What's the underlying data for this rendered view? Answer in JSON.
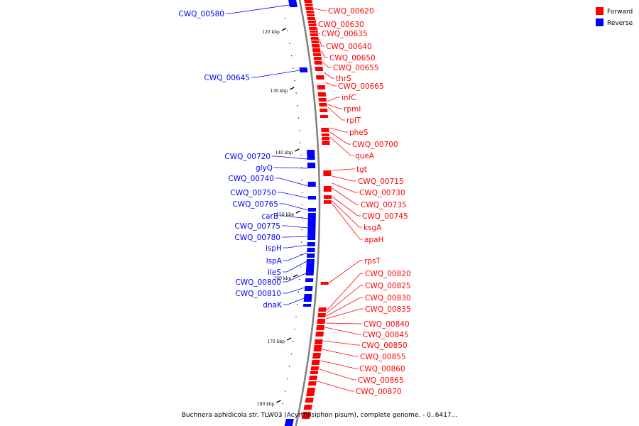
{
  "caption": "Buchnera aphidicola str. TLW03 (Acyrthosiphon pisum), complete genome. - 0..6417...",
  "legend": [
    {
      "label": "Forward",
      "color": "#ff0000"
    },
    {
      "label": "Reverse",
      "color": "#0000ff"
    }
  ],
  "colors": {
    "forward": "#ff0000",
    "reverse": "#0000ff",
    "backbone": "#808080",
    "ticks": "#000000"
  },
  "kbp_labels": [
    "120 kbp",
    "130 kbp",
    "140 kbp",
    "150 kbp",
    "160 kbp",
    "170 kbp",
    "180 kbp"
  ],
  "forward_labels": [
    "CWQ_00620",
    "CWQ_00630",
    "CWQ_00635",
    "CWQ_00640",
    "CWQ_00650",
    "CWQ_00655",
    "thrS",
    "CWQ_00665",
    "infC",
    "rpmI",
    "rplT",
    "pheS",
    "CWQ_00700",
    "queA",
    "tgt",
    "CWQ_00715",
    "CWQ_00730",
    "CWQ_00735",
    "CWQ_00745",
    "ksgA",
    "apaH",
    "rpsT",
    "CWQ_00820",
    "CWQ_00825",
    "CWQ_00830",
    "CWQ_00835",
    "CWQ_00840",
    "CWQ_00845",
    "CWQ_00850",
    "CWQ_00855",
    "CWQ_00860",
    "CWQ_00865",
    "CWQ_00870"
  ],
  "reverse_labels": [
    "CWQ_00580",
    "CWQ_00645",
    "CWQ_00720",
    "glyQ",
    "CWQ_00740",
    "CWQ_00750",
    "CWQ_00765",
    "carB",
    "CWQ_00775",
    "CWQ_00780",
    "ispH",
    "lspA",
    "ileS",
    "CWQ_00800",
    "CWQ_00810",
    "dnaK"
  ]
}
